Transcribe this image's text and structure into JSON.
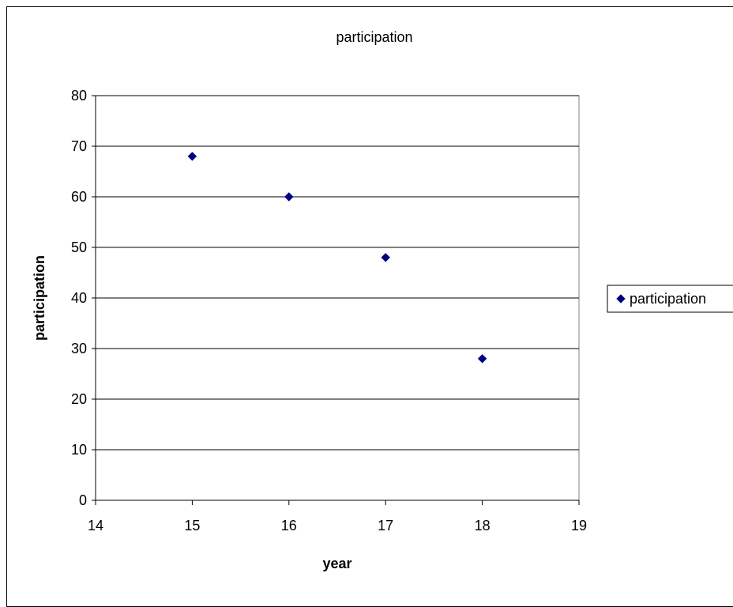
{
  "chart_data": {
    "type": "scatter",
    "title": "participation",
    "xlabel": "year",
    "ylabel": "participation",
    "xlim": [
      14,
      19
    ],
    "ylim": [
      0,
      80
    ],
    "xticks": [
      14,
      15,
      16,
      17,
      18,
      19
    ],
    "yticks": [
      0,
      10,
      20,
      30,
      40,
      50,
      60,
      70,
      80
    ],
    "grid": "horizontal",
    "legend_position": "right",
    "series": [
      {
        "name": "participation",
        "color": "#000080",
        "marker": "diamond",
        "x": [
          15,
          16,
          17,
          18
        ],
        "y": [
          68,
          60,
          48,
          28
        ]
      }
    ]
  }
}
